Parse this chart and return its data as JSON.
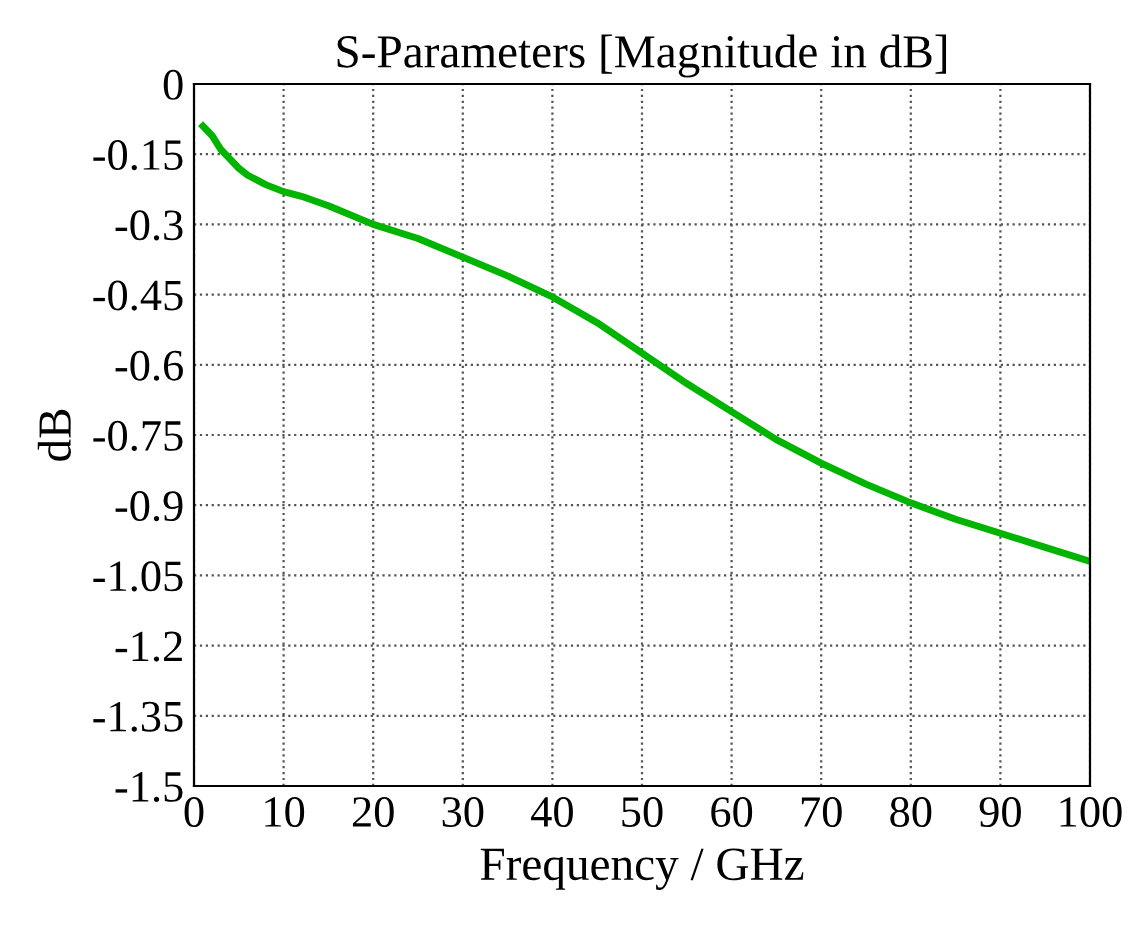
{
  "chart_data": {
    "type": "line",
    "title": "S-Parameters [Magnitude in dB]",
    "xlabel": "Frequency / GHz",
    "ylabel": "dB",
    "series": [
      {
        "color": "#00b400",
        "x": [
          1,
          2,
          3,
          4,
          5,
          6,
          7,
          8,
          10,
          12,
          15,
          20,
          25,
          30,
          35,
          40,
          45,
          50,
          55,
          60,
          65,
          70,
          75,
          80,
          85,
          90,
          95,
          100
        ],
        "values": [
          -0.09,
          -0.11,
          -0.14,
          -0.16,
          -0.18,
          -0.195,
          -0.205,
          -0.215,
          -0.23,
          -0.24,
          -0.26,
          -0.3,
          -0.33,
          -0.37,
          -0.41,
          -0.455,
          -0.51,
          -0.575,
          -0.64,
          -0.7,
          -0.76,
          -0.81,
          -0.855,
          -0.895,
          -0.93,
          -0.96,
          -0.99,
          -1.02
        ]
      }
    ],
    "xlim": [
      0,
      100
    ],
    "xticks": [
      0,
      10,
      20,
      30,
      40,
      50,
      60,
      70,
      80,
      90,
      100
    ],
    "ylim": [
      -1.5,
      0
    ],
    "yticks": [
      -1.5,
      -1.35,
      -1.2,
      -1.05,
      -0.9,
      -0.75,
      -0.6,
      -0.45,
      -0.3,
      -0.15,
      0
    ],
    "grid": true,
    "line_style": "solid",
    "marker": "none"
  }
}
